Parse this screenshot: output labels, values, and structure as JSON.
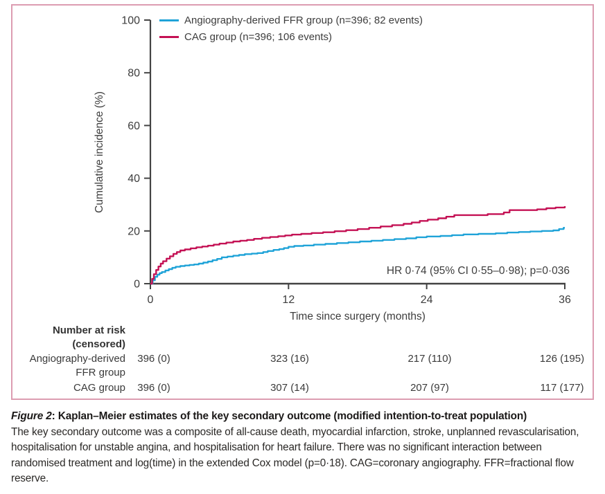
{
  "colors": {
    "frame": "#dc9cb1",
    "axis": "#434343",
    "text": "#3d3d3d",
    "ffr_blue": "#1fa3d8",
    "cag_red": "#c41154"
  },
  "chart_data": {
    "type": "line",
    "subtype": "kaplan-meier-cumulative-incidence-steps",
    "title": "",
    "xlabel": "Time since surgery (months)",
    "ylabel": "Cumulative incidence (%)",
    "xlim": [
      0,
      36
    ],
    "ylim": [
      0,
      100
    ],
    "x_ticks": [
      0,
      12,
      24,
      36
    ],
    "y_ticks": [
      0,
      20,
      40,
      60,
      80,
      100
    ],
    "grid": false,
    "legend_position": "top-left-inside",
    "annotation": "HR 0·74 (95% CI 0·55–0·98); p=0·036",
    "series": [
      {
        "id": "ffr",
        "name": "Angiography-derived FFR group (n=396; 82 events)",
        "color": "#1fa3d8",
        "n": 396,
        "events": 82,
        "steps": [
          [
            0,
            0
          ],
          [
            0.2,
            1.3
          ],
          [
            0.4,
            2.6
          ],
          [
            0.6,
            3.4
          ],
          [
            0.8,
            4.0
          ],
          [
            1.0,
            4.4
          ],
          [
            1.3,
            5.0
          ],
          [
            1.6,
            5.5
          ],
          [
            1.9,
            6.0
          ],
          [
            2.2,
            6.4
          ],
          [
            2.6,
            6.7
          ],
          [
            3.0,
            6.9
          ],
          [
            3.4,
            7.1
          ],
          [
            3.8,
            7.3
          ],
          [
            4.2,
            7.6
          ],
          [
            4.6,
            8.0
          ],
          [
            5.0,
            8.4
          ],
          [
            5.4,
            8.9
          ],
          [
            5.8,
            9.4
          ],
          [
            6.2,
            10.0
          ],
          [
            6.7,
            10.3
          ],
          [
            7.2,
            10.6
          ],
          [
            7.7,
            10.9
          ],
          [
            8.2,
            11.2
          ],
          [
            8.8,
            11.4
          ],
          [
            9.3,
            11.6
          ],
          [
            9.8,
            12.0
          ],
          [
            10.2,
            12.4
          ],
          [
            10.7,
            12.8
          ],
          [
            11.2,
            13.1
          ],
          [
            11.6,
            13.5
          ],
          [
            12.0,
            14.0
          ],
          [
            12.5,
            14.3
          ],
          [
            13.3,
            14.5
          ],
          [
            14.2,
            14.8
          ],
          [
            15.2,
            15.1
          ],
          [
            16.2,
            15.4
          ],
          [
            17.2,
            15.7
          ],
          [
            18.2,
            16.0
          ],
          [
            19.2,
            16.3
          ],
          [
            20.2,
            16.6
          ],
          [
            21.2,
            16.9
          ],
          [
            22.2,
            17.2
          ],
          [
            23.1,
            17.6
          ],
          [
            24.0,
            17.9
          ],
          [
            25.2,
            18.1
          ],
          [
            26.2,
            18.4
          ],
          [
            27.2,
            18.7
          ],
          [
            28.5,
            18.9
          ],
          [
            30.0,
            19.1
          ],
          [
            31.0,
            19.4
          ],
          [
            32.0,
            19.6
          ],
          [
            33.0,
            19.8
          ],
          [
            34.0,
            20.0
          ],
          [
            35.0,
            20.2
          ],
          [
            35.5,
            20.7
          ],
          [
            35.9,
            21.2
          ],
          [
            36,
            21.2
          ]
        ]
      },
      {
        "id": "cag",
        "name": "CAG group (n=396; 106 events)",
        "color": "#c41154",
        "n": 396,
        "events": 106,
        "steps": [
          [
            0,
            0
          ],
          [
            0.15,
            1.8
          ],
          [
            0.3,
            3.6
          ],
          [
            0.5,
            5.2
          ],
          [
            0.7,
            6.5
          ],
          [
            0.9,
            7.6
          ],
          [
            1.1,
            8.5
          ],
          [
            1.4,
            9.5
          ],
          [
            1.7,
            10.4
          ],
          [
            2.0,
            11.3
          ],
          [
            2.3,
            12.0
          ],
          [
            2.6,
            12.6
          ],
          [
            3.0,
            13.0
          ],
          [
            3.5,
            13.4
          ],
          [
            4.0,
            13.8
          ],
          [
            4.5,
            14.1
          ],
          [
            5.0,
            14.4
          ],
          [
            5.5,
            14.8
          ],
          [
            6.0,
            15.2
          ],
          [
            6.6,
            15.6
          ],
          [
            7.2,
            16.0
          ],
          [
            7.8,
            16.3
          ],
          [
            8.4,
            16.6
          ],
          [
            9.0,
            17.0
          ],
          [
            9.7,
            17.4
          ],
          [
            10.4,
            17.7
          ],
          [
            11.1,
            18.0
          ],
          [
            11.7,
            18.3
          ],
          [
            12.3,
            18.6
          ],
          [
            13.1,
            18.9
          ],
          [
            14.0,
            19.2
          ],
          [
            15.0,
            19.5
          ],
          [
            16.0,
            19.9
          ],
          [
            17.0,
            20.3
          ],
          [
            18.0,
            20.7
          ],
          [
            19.0,
            21.2
          ],
          [
            20.0,
            21.7
          ],
          [
            21.0,
            22.2
          ],
          [
            22.0,
            22.7
          ],
          [
            22.7,
            23.2
          ],
          [
            23.4,
            23.8
          ],
          [
            24.1,
            24.3
          ],
          [
            25.0,
            24.8
          ],
          [
            25.7,
            25.4
          ],
          [
            26.4,
            26.0
          ],
          [
            29.3,
            26.4
          ],
          [
            30.7,
            27.0
          ],
          [
            31.2,
            27.9
          ],
          [
            33.6,
            28.2
          ],
          [
            34.4,
            28.6
          ],
          [
            35.2,
            28.9
          ],
          [
            36,
            29.4
          ]
        ]
      }
    ]
  },
  "risk_table": {
    "header_line1": "Number at risk",
    "header_line2": "(censored)",
    "rows": [
      {
        "label_line1": "Angiography-derived",
        "label_line2": "FFR group",
        "values": [
          "396 (0)",
          "323 (16)",
          "217 (110)",
          "126 (195)"
        ]
      },
      {
        "label_line1": "CAG group",
        "label_line2": "",
        "values": [
          "396 (0)",
          "307 (14)",
          "207 (97)",
          "117 (177)"
        ]
      }
    ]
  },
  "caption": {
    "figure_label": "Figure 2",
    "title_rest": ": Kaplan–Meier estimates of the key secondary outcome (modified intention-to-treat population)",
    "body": "The key secondary outcome was a composite of all-cause death, myocardial infarction, stroke, unplanned revascularisation, hospitalisation for unstable angina, and hospitalisation for heart failure. There was no significant interaction between randomised treatment and log(time) in the extended Cox model (p=0·18). CAG=coronary angiography. FFR=fractional flow reserve."
  }
}
